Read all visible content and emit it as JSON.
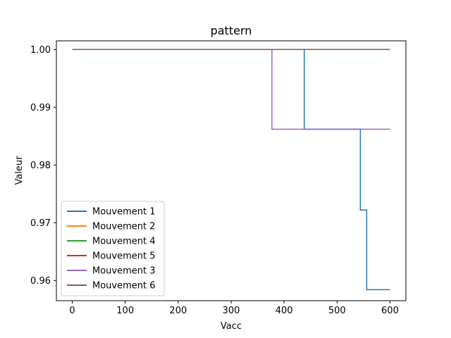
{
  "chart_data": {
    "type": "line",
    "title": "pattern",
    "xlabel": "Vacc",
    "ylabel": "Valeur",
    "xlim": [
      -30,
      630
    ],
    "ylim": [
      0.9565,
      1.0015
    ],
    "xticks": [
      0,
      100,
      200,
      300,
      400,
      500,
      600
    ],
    "yticks": [
      0.96,
      0.97,
      0.98,
      0.99,
      1.0
    ],
    "ytick_labels": [
      "0.96",
      "0.97",
      "0.98",
      "0.99",
      "1.00"
    ],
    "grid": false,
    "legend_position": "lower-left",
    "series": [
      {
        "name": "Mouvement 1",
        "color": "#1f77b4",
        "x": [
          0,
          438,
          438,
          544,
          544,
          556,
          556,
          600
        ],
        "y": [
          1.0,
          1.0,
          0.9862,
          0.9862,
          0.9722,
          0.9722,
          0.9584,
          0.9584
        ]
      },
      {
        "name": "Mouvement 2",
        "color": "#ff7f0e",
        "x": [
          0,
          600
        ],
        "y": [
          1.0,
          1.0
        ]
      },
      {
        "name": "Mouvement 4",
        "color": "#2ca02c",
        "x": [
          0,
          600
        ],
        "y": [
          1.0,
          1.0
        ]
      },
      {
        "name": "Mouvement 5",
        "color": "#d62728",
        "x": [
          0,
          600
        ],
        "y": [
          1.0,
          1.0
        ]
      },
      {
        "name": "Mouvement 3",
        "color": "#9467bd",
        "x": [
          0,
          377,
          377,
          600
        ],
        "y": [
          1.0,
          1.0,
          0.9862,
          0.9862
        ]
      },
      {
        "name": "Mouvement 6",
        "color": "#8c564b",
        "x": [
          0,
          600
        ],
        "y": [
          1.0,
          1.0
        ]
      }
    ]
  }
}
